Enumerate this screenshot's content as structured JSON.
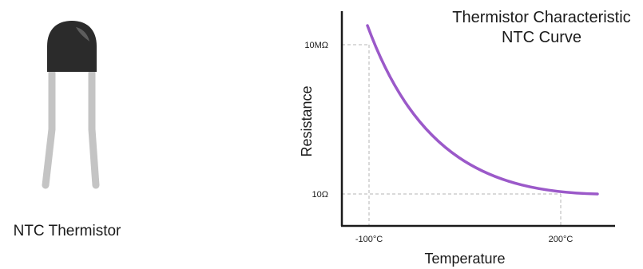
{
  "component": {
    "caption": "NTC Thermistor",
    "colors": {
      "body": "#2b2b2b",
      "leads": "#c4c4c4"
    }
  },
  "chart_data": {
    "type": "line",
    "title_lines": [
      "Thermistor Characteristic",
      "NTC Curve"
    ],
    "xlabel": "Temperature",
    "ylabel": "Resistance",
    "x_ticks": [
      "-100°C",
      "200°C"
    ],
    "y_ticks": [
      "10MΩ",
      "10Ω"
    ],
    "curve_shape": "decreasing exponential",
    "series": [
      {
        "points": [
          {
            "x": "-100°C",
            "y": "10MΩ"
          },
          {
            "x": "200°C",
            "y": "10Ω"
          }
        ]
      }
    ],
    "grid": false,
    "reference_lines": "dashed",
    "colors": {
      "curve": "#9b59c9",
      "axes": "#1a1a1a",
      "reference": "#b5b5b5"
    }
  }
}
